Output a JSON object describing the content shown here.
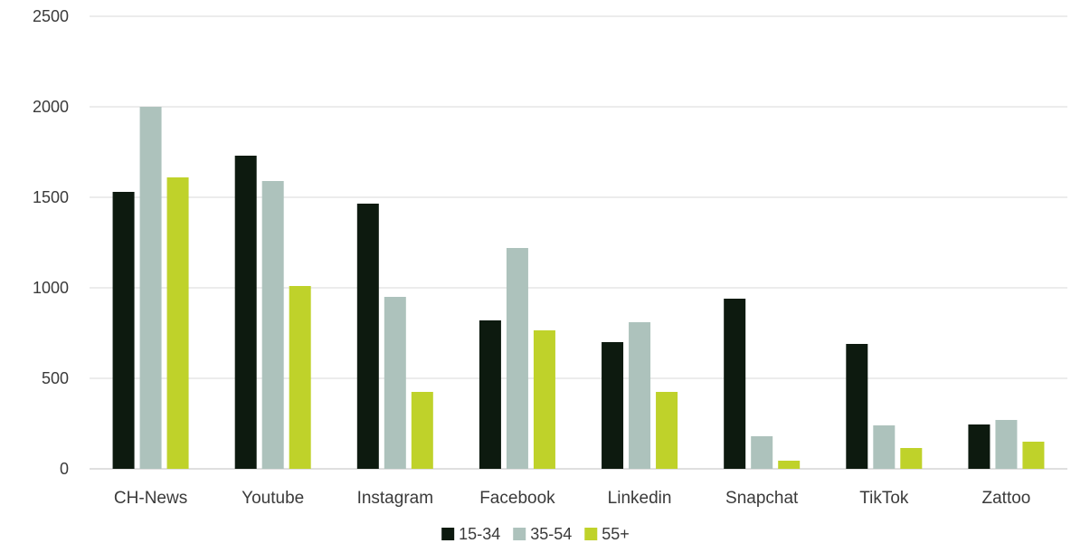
{
  "chart_data": {
    "type": "bar",
    "title": "",
    "xlabel": "",
    "ylabel": "",
    "categories": [
      "CH-News",
      "Youtube",
      "Instagram",
      "Facebook",
      "Linkedin",
      "Snapchat",
      "TikTok",
      "Zattoo"
    ],
    "series": [
      {
        "name": "15-34",
        "color": "#0d1a0f",
        "values": [
          1530,
          1730,
          1465,
          820,
          700,
          940,
          690,
          245
        ]
      },
      {
        "name": "35-54",
        "color": "#adc2bc",
        "values": [
          2000,
          1590,
          950,
          1220,
          810,
          180,
          240,
          270
        ]
      },
      {
        "name": "55+",
        "color": "#bfd22a",
        "values": [
          1610,
          1010,
          425,
          765,
          425,
          45,
          115,
          150
        ]
      }
    ],
    "ylim": [
      0,
      2500
    ],
    "yticks": [
      0,
      500,
      1000,
      1500,
      2000,
      2500
    ],
    "grid": true,
    "legend_position": "bottom",
    "grid_color": "#d9d9d9",
    "axis_color": "#bfbfbf"
  }
}
